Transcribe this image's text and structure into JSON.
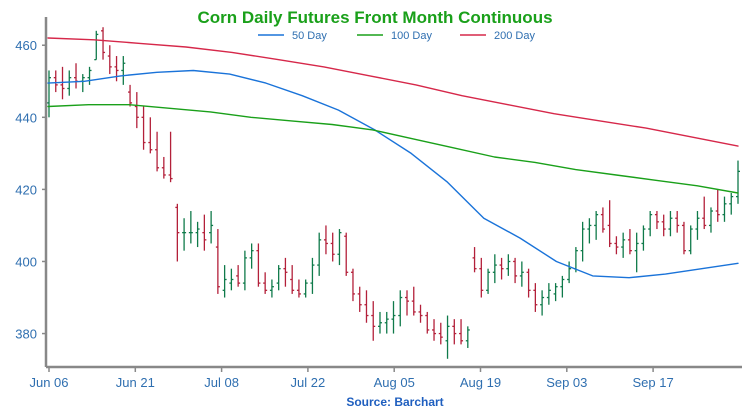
{
  "chart_data": {
    "type": "line",
    "title": "Corn Daily Futures Front Month Continuous",
    "source": "Source: Barchart",
    "xlabel": "",
    "ylabel": "",
    "x_ticks": [
      "Jun 06",
      "Jun 21",
      "Jul 08",
      "Jul 22",
      "Aug 05",
      "Aug 19",
      "Sep 03",
      "Sep 17"
    ],
    "y_ticks": [
      380,
      400,
      420,
      440,
      460
    ],
    "ylim": [
      371,
      467
    ],
    "grid": false,
    "legend_position": "top",
    "series": [
      {
        "name": "50 Day",
        "color": "#1a73d9",
        "values": [
          449.5,
          450,
          451.5,
          452.5,
          453,
          452,
          449.5,
          446,
          442,
          436.5,
          430,
          422,
          412,
          406.5,
          400,
          396,
          395.5,
          396.5,
          398,
          399.5
        ]
      },
      {
        "name": "100 Day",
        "color": "#1aa01a",
        "values": [
          443,
          443.5,
          443.5,
          442.5,
          441.5,
          440,
          439,
          438,
          436.5,
          434,
          431.5,
          429,
          427.5,
          425.5,
          424,
          422.5,
          421,
          419
        ]
      },
      {
        "name": "200 Day",
        "color": "#d6284a",
        "values": [
          462,
          461.5,
          460.5,
          459.5,
          458,
          456,
          454,
          451.5,
          449,
          446,
          443.5,
          441,
          439,
          437,
          434.5,
          432
        ]
      }
    ],
    "ohlc_series": {
      "up_color": "#0f7a4a",
      "down_color": "#b3203a",
      "bars": [
        {
          "o": 444,
          "h": 453,
          "l": 440,
          "c": 451
        },
        {
          "o": 451,
          "h": 453,
          "l": 447,
          "c": 449
        },
        {
          "o": 449,
          "h": 454,
          "l": 445,
          "c": 448
        },
        {
          "o": 448,
          "h": 453,
          "l": 446,
          "c": 451
        },
        {
          "o": 451,
          "h": 455,
          "l": 448,
          "c": 450
        },
        {
          "o": 450,
          "h": 452,
          "l": 447,
          "c": 451
        },
        {
          "o": 451,
          "h": 454,
          "l": 449,
          "c": 453
        },
        {
          "o": 456,
          "h": 464,
          "l": 456,
          "c": 463
        },
        {
          "o": 464,
          "h": 465,
          "l": 456,
          "c": 458
        },
        {
          "o": 457,
          "h": 460,
          "l": 452,
          "c": 454
        },
        {
          "o": 454,
          "h": 457,
          "l": 450,
          "c": 453
        },
        {
          "o": 453,
          "h": 457,
          "l": 449,
          "c": 455
        },
        {
          "o": 447,
          "h": 449,
          "l": 443,
          "c": 444
        },
        {
          "o": 443,
          "h": 447,
          "l": 437,
          "c": 440
        },
        {
          "o": 440,
          "h": 443,
          "l": 431,
          "c": 433
        },
        {
          "o": 433,
          "h": 440,
          "l": 430,
          "c": 431
        },
        {
          "o": 431,
          "h": 436,
          "l": 425,
          "c": 426
        },
        {
          "o": 426,
          "h": 429,
          "l": 423,
          "c": 424
        },
        {
          "o": 424,
          "h": 436,
          "l": 422,
          "c": 423
        },
        {
          "o": 415,
          "h": 416,
          "l": 400,
          "c": 408
        },
        {
          "o": 408,
          "h": 412,
          "l": 403,
          "c": 408
        },
        {
          "o": 408,
          "h": 414,
          "l": 405,
          "c": 408
        },
        {
          "o": 408,
          "h": 411,
          "l": 404,
          "c": 409
        },
        {
          "o": 408,
          "h": 413,
          "l": 403,
          "c": 406
        },
        {
          "o": 408,
          "h": 414,
          "l": 405,
          "c": 410
        },
        {
          "o": 404,
          "h": 409,
          "l": 391,
          "c": 393
        },
        {
          "o": 392,
          "h": 399,
          "l": 390,
          "c": 395
        },
        {
          "o": 394,
          "h": 398,
          "l": 392,
          "c": 395
        },
        {
          "o": 396,
          "h": 399,
          "l": 393,
          "c": 394
        },
        {
          "o": 394,
          "h": 403,
          "l": 392,
          "c": 401
        },
        {
          "o": 401,
          "h": 405,
          "l": 398,
          "c": 403
        },
        {
          "o": 403,
          "h": 405,
          "l": 393,
          "c": 394
        },
        {
          "o": 394,
          "h": 397,
          "l": 391,
          "c": 392
        },
        {
          "o": 392,
          "h": 395,
          "l": 390,
          "c": 393
        },
        {
          "o": 394,
          "h": 399,
          "l": 392,
          "c": 398
        },
        {
          "o": 398,
          "h": 401,
          "l": 393,
          "c": 397
        },
        {
          "o": 395,
          "h": 399,
          "l": 391,
          "c": 392
        },
        {
          "o": 392,
          "h": 395,
          "l": 390,
          "c": 391
        },
        {
          "o": 391,
          "h": 395,
          "l": 390,
          "c": 394
        },
        {
          "o": 394,
          "h": 401,
          "l": 391,
          "c": 399
        },
        {
          "o": 399,
          "h": 408,
          "l": 396,
          "c": 406
        },
        {
          "o": 406,
          "h": 410,
          "l": 402,
          "c": 405
        },
        {
          "o": 405,
          "h": 408,
          "l": 400,
          "c": 402
        },
        {
          "o": 402,
          "h": 409,
          "l": 399,
          "c": 408
        },
        {
          "o": 407,
          "h": 408,
          "l": 396,
          "c": 397
        },
        {
          "o": 397,
          "h": 398,
          "l": 389,
          "c": 391
        },
        {
          "o": 391,
          "h": 393,
          "l": 386,
          "c": 388
        },
        {
          "o": 388,
          "h": 392,
          "l": 383,
          "c": 385
        },
        {
          "o": 385,
          "h": 389,
          "l": 378,
          "c": 382
        },
        {
          "o": 382,
          "h": 386,
          "l": 380,
          "c": 383
        },
        {
          "o": 383,
          "h": 386,
          "l": 380,
          "c": 384
        },
        {
          "o": 384,
          "h": 389,
          "l": 380,
          "c": 385
        },
        {
          "o": 385,
          "h": 392,
          "l": 382,
          "c": 390
        },
        {
          "o": 390,
          "h": 392,
          "l": 385,
          "c": 389
        },
        {
          "o": 389,
          "h": 393,
          "l": 385,
          "c": 386
        },
        {
          "o": 386,
          "h": 388,
          "l": 383,
          "c": 385
        },
        {
          "o": 385,
          "h": 386,
          "l": 380,
          "c": 381
        },
        {
          "o": 381,
          "h": 384,
          "l": 378,
          "c": 380
        },
        {
          "o": 380,
          "h": 383,
          "l": 377,
          "c": 379
        },
        {
          "o": 378,
          "h": 385,
          "l": 373,
          "c": 382
        },
        {
          "o": 382,
          "h": 384,
          "l": 377,
          "c": 380
        },
        {
          "o": 380,
          "h": 384,
          "l": 377,
          "c": 378
        },
        {
          "o": 378,
          "h": 382,
          "l": 376,
          "c": 381
        },
        {
          "o": 401,
          "h": 404,
          "l": 397,
          "c": 398
        },
        {
          "o": 398,
          "h": 401,
          "l": 390,
          "c": 392
        },
        {
          "o": 392,
          "h": 398,
          "l": 391,
          "c": 397
        },
        {
          "o": 397,
          "h": 402,
          "l": 394,
          "c": 399
        },
        {
          "o": 399,
          "h": 401,
          "l": 395,
          "c": 398
        },
        {
          "o": 398,
          "h": 402,
          "l": 396,
          "c": 400
        },
        {
          "o": 400,
          "h": 401,
          "l": 394,
          "c": 396
        },
        {
          "o": 396,
          "h": 400,
          "l": 393,
          "c": 397
        },
        {
          "o": 397,
          "h": 398,
          "l": 390,
          "c": 392
        },
        {
          "o": 392,
          "h": 394,
          "l": 386,
          "c": 388
        },
        {
          "o": 388,
          "h": 392,
          "l": 385,
          "c": 390
        },
        {
          "o": 390,
          "h": 394,
          "l": 388,
          "c": 392
        },
        {
          "o": 391,
          "h": 394,
          "l": 389,
          "c": 393
        },
        {
          "o": 393,
          "h": 396,
          "l": 390,
          "c": 395
        },
        {
          "o": 395,
          "h": 400,
          "l": 394,
          "c": 398
        },
        {
          "o": 398,
          "h": 404,
          "l": 397,
          "c": 403
        },
        {
          "o": 403,
          "h": 411,
          "l": 400,
          "c": 409
        },
        {
          "o": 409,
          "h": 412,
          "l": 405,
          "c": 410
        },
        {
          "o": 410,
          "h": 414,
          "l": 406,
          "c": 413
        },
        {
          "o": 413,
          "h": 415,
          "l": 408,
          "c": 409
        },
        {
          "o": 410,
          "h": 417,
          "l": 404,
          "c": 405
        },
        {
          "o": 405,
          "h": 407,
          "l": 402,
          "c": 404
        },
        {
          "o": 404,
          "h": 408,
          "l": 401,
          "c": 406
        },
        {
          "o": 406,
          "h": 409,
          "l": 402,
          "c": 403
        },
        {
          "o": 403,
          "h": 408,
          "l": 397,
          "c": 405
        },
        {
          "o": 405,
          "h": 410,
          "l": 403,
          "c": 409
        },
        {
          "o": 409,
          "h": 414,
          "l": 407,
          "c": 413
        },
        {
          "o": 413,
          "h": 414,
          "l": 409,
          "c": 411
        },
        {
          "o": 411,
          "h": 413,
          "l": 407,
          "c": 409
        },
        {
          "o": 409,
          "h": 414,
          "l": 407,
          "c": 412
        },
        {
          "o": 412,
          "h": 414,
          "l": 408,
          "c": 410
        },
        {
          "o": 410,
          "h": 411,
          "l": 402,
          "c": 403
        },
        {
          "o": 403,
          "h": 410,
          "l": 402,
          "c": 409
        },
        {
          "o": 409,
          "h": 414,
          "l": 406,
          "c": 412
        },
        {
          "o": 412,
          "h": 418,
          "l": 409,
          "c": 410
        },
        {
          "o": 410,
          "h": 415,
          "l": 408,
          "c": 414
        },
        {
          "o": 414,
          "h": 420,
          "l": 411,
          "c": 413
        },
        {
          "o": 413,
          "h": 418,
          "l": 411,
          "c": 416
        },
        {
          "o": 416,
          "h": 419,
          "l": 413,
          "c": 418
        },
        {
          "o": 418,
          "h": 428,
          "l": 416,
          "c": 425
        }
      ]
    }
  }
}
